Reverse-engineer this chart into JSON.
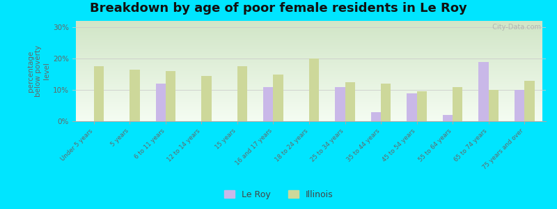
{
  "title": "Breakdown by age of poor female residents in Le Roy",
  "ylabel": "percentage\nbelow poverty\nlevel",
  "categories": [
    "Under 5 years",
    "5 years",
    "6 to 11 years",
    "12 to 14 years",
    "15 years",
    "16 and 17 years",
    "18 to 24 years",
    "25 to 34 years",
    "35 to 44 years",
    "45 to 54 years",
    "55 to 64 years",
    "65 to 74 years",
    "75 years and over"
  ],
  "leroy_values": [
    null,
    null,
    12,
    null,
    null,
    11,
    null,
    11,
    3,
    9,
    2,
    19,
    10
  ],
  "illinois_values": [
    17.5,
    16.5,
    16,
    14.5,
    17.5,
    15,
    20,
    12.5,
    12,
    9.5,
    11,
    10,
    13
  ],
  "leroy_color": "#c9b8e8",
  "illinois_color": "#cdd89a",
  "ylim": [
    0,
    32
  ],
  "yticks": [
    0,
    10,
    20,
    30
  ],
  "ytick_labels": [
    "0%",
    "10%",
    "20%",
    "30%"
  ],
  "title_fontsize": 13,
  "bar_width": 0.28,
  "outer_bg": "#00e5ff",
  "watermark": "  City-Data.com",
  "legend_leroy": "Le Roy",
  "legend_illinois": "Illinois"
}
